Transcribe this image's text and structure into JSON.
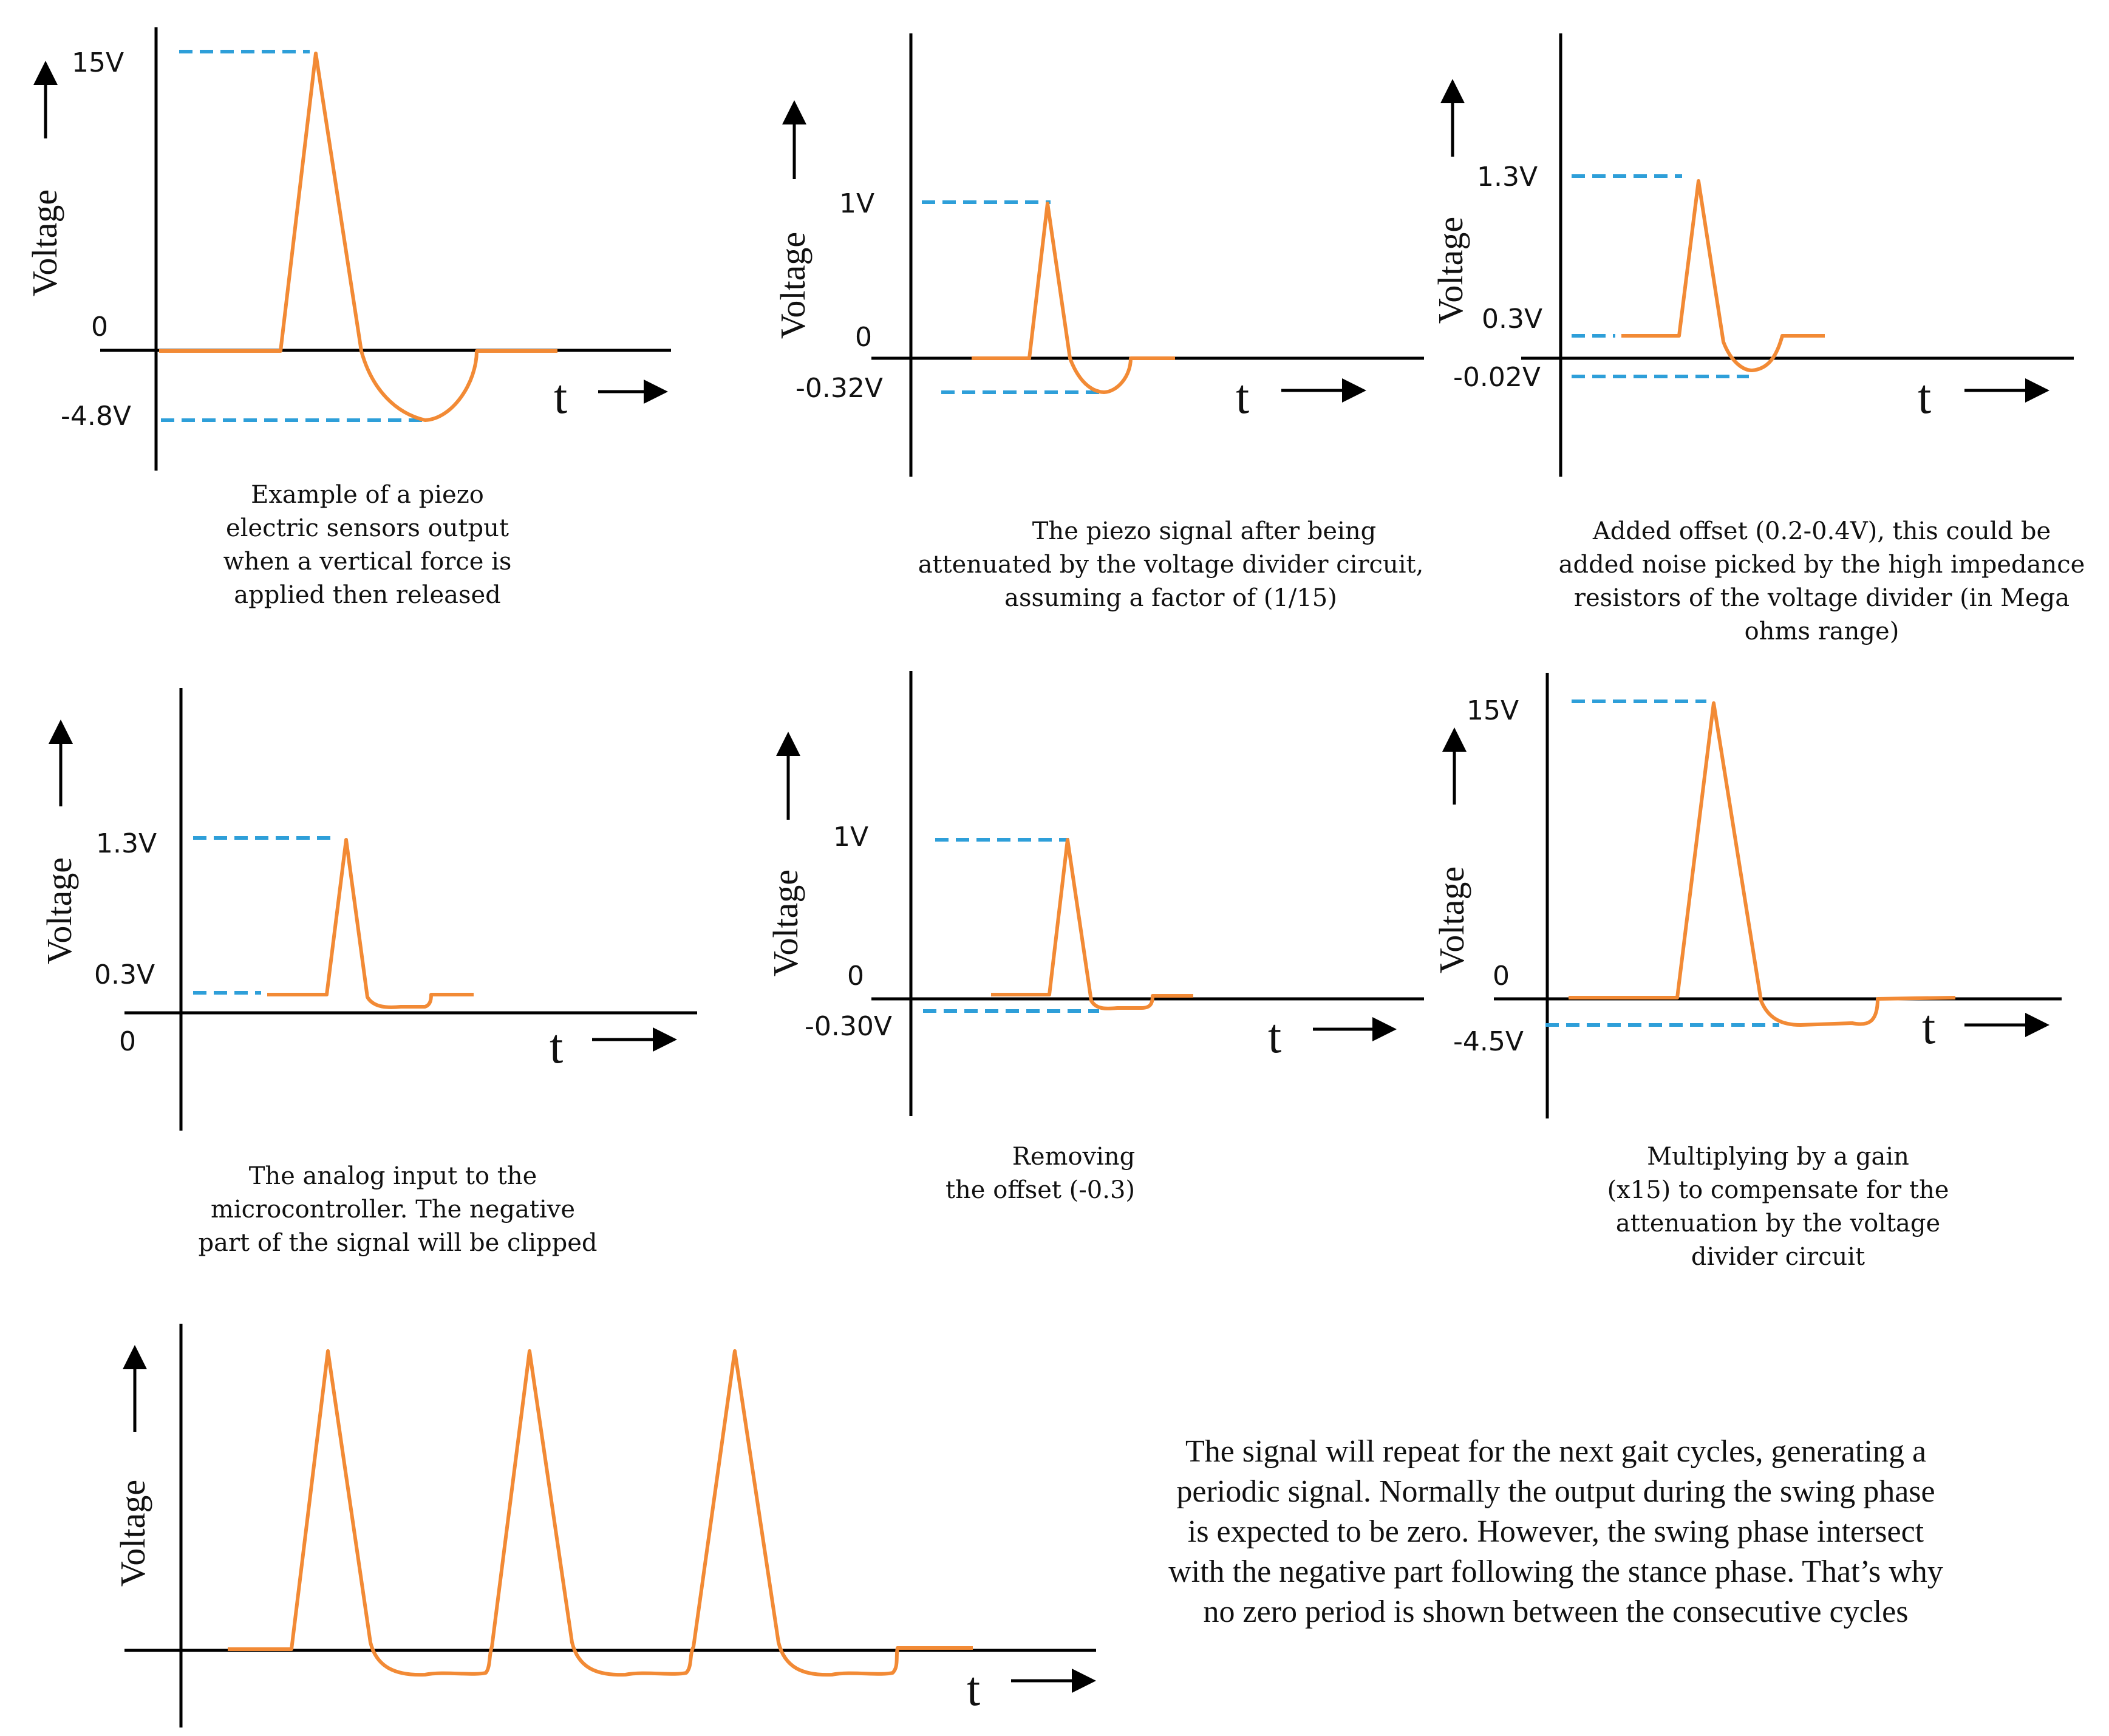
{
  "colors": {
    "signal": "#f28a35",
    "dashed": "#2e9fd9",
    "axis": "#000000"
  },
  "panels": [
    {
      "id": "panel-1",
      "y_label": "Voltage",
      "t_label": "t",
      "zero_label": "0",
      "levels": [
        "15V",
        "-4.8V"
      ],
      "caption": [
        "Example of a piezo",
        "electric sensors output",
        "when a vertical force is",
        "applied then released"
      ]
    },
    {
      "id": "panel-2",
      "y_label": "Voltage",
      "t_label": "t",
      "zero_label": "0",
      "levels": [
        "1V",
        "-0.32V"
      ],
      "caption": [
        "The piezo signal after being",
        "attenuated by the voltage divider circuit,",
        "assuming a factor of (1/15)"
      ]
    },
    {
      "id": "panel-3",
      "y_label": "Voltage",
      "t_label": "t",
      "levels": [
        "1.3V",
        "0.3V",
        "-0.02V"
      ],
      "caption": [
        "Added offset (0.2-0.4V), this could be",
        "added noise picked by the high impedance",
        "resistors of the voltage divider (in Mega",
        "ohms range)"
      ]
    },
    {
      "id": "panel-4",
      "y_label": "Voltage",
      "t_label": "t",
      "zero_label": "0",
      "levels": [
        "1.3V",
        "0.3V"
      ],
      "caption": [
        "The analog input to the",
        "microcontroller. The negative",
        "part of the signal will be clipped"
      ]
    },
    {
      "id": "panel-5",
      "y_label": "Voltage",
      "t_label": "t",
      "zero_label": "0",
      "levels": [
        "1V",
        "-0.30V"
      ],
      "caption": [
        "Removing",
        "the offset (-0.3)"
      ]
    },
    {
      "id": "panel-6",
      "y_label": "Voltage",
      "t_label": "t",
      "zero_label": "0",
      "levels": [
        "15V",
        "-4.5V"
      ],
      "caption": [
        "Multiplying by a gain",
        "(x15) to compensate for the",
        "attenuation by the voltage",
        "divider circuit"
      ]
    },
    {
      "id": "panel-7",
      "y_label": "Voltage",
      "t_label": "t",
      "caption": [
        "The signal will repeat for the next gait cycles, generating a",
        "periodic signal. Normally the output during the swing phase",
        "is expected to be zero. However, the swing phase intersect",
        "with the negative part following the stance phase. That’s why",
        "no zero period is shown between the consecutive cycles"
      ]
    }
  ]
}
